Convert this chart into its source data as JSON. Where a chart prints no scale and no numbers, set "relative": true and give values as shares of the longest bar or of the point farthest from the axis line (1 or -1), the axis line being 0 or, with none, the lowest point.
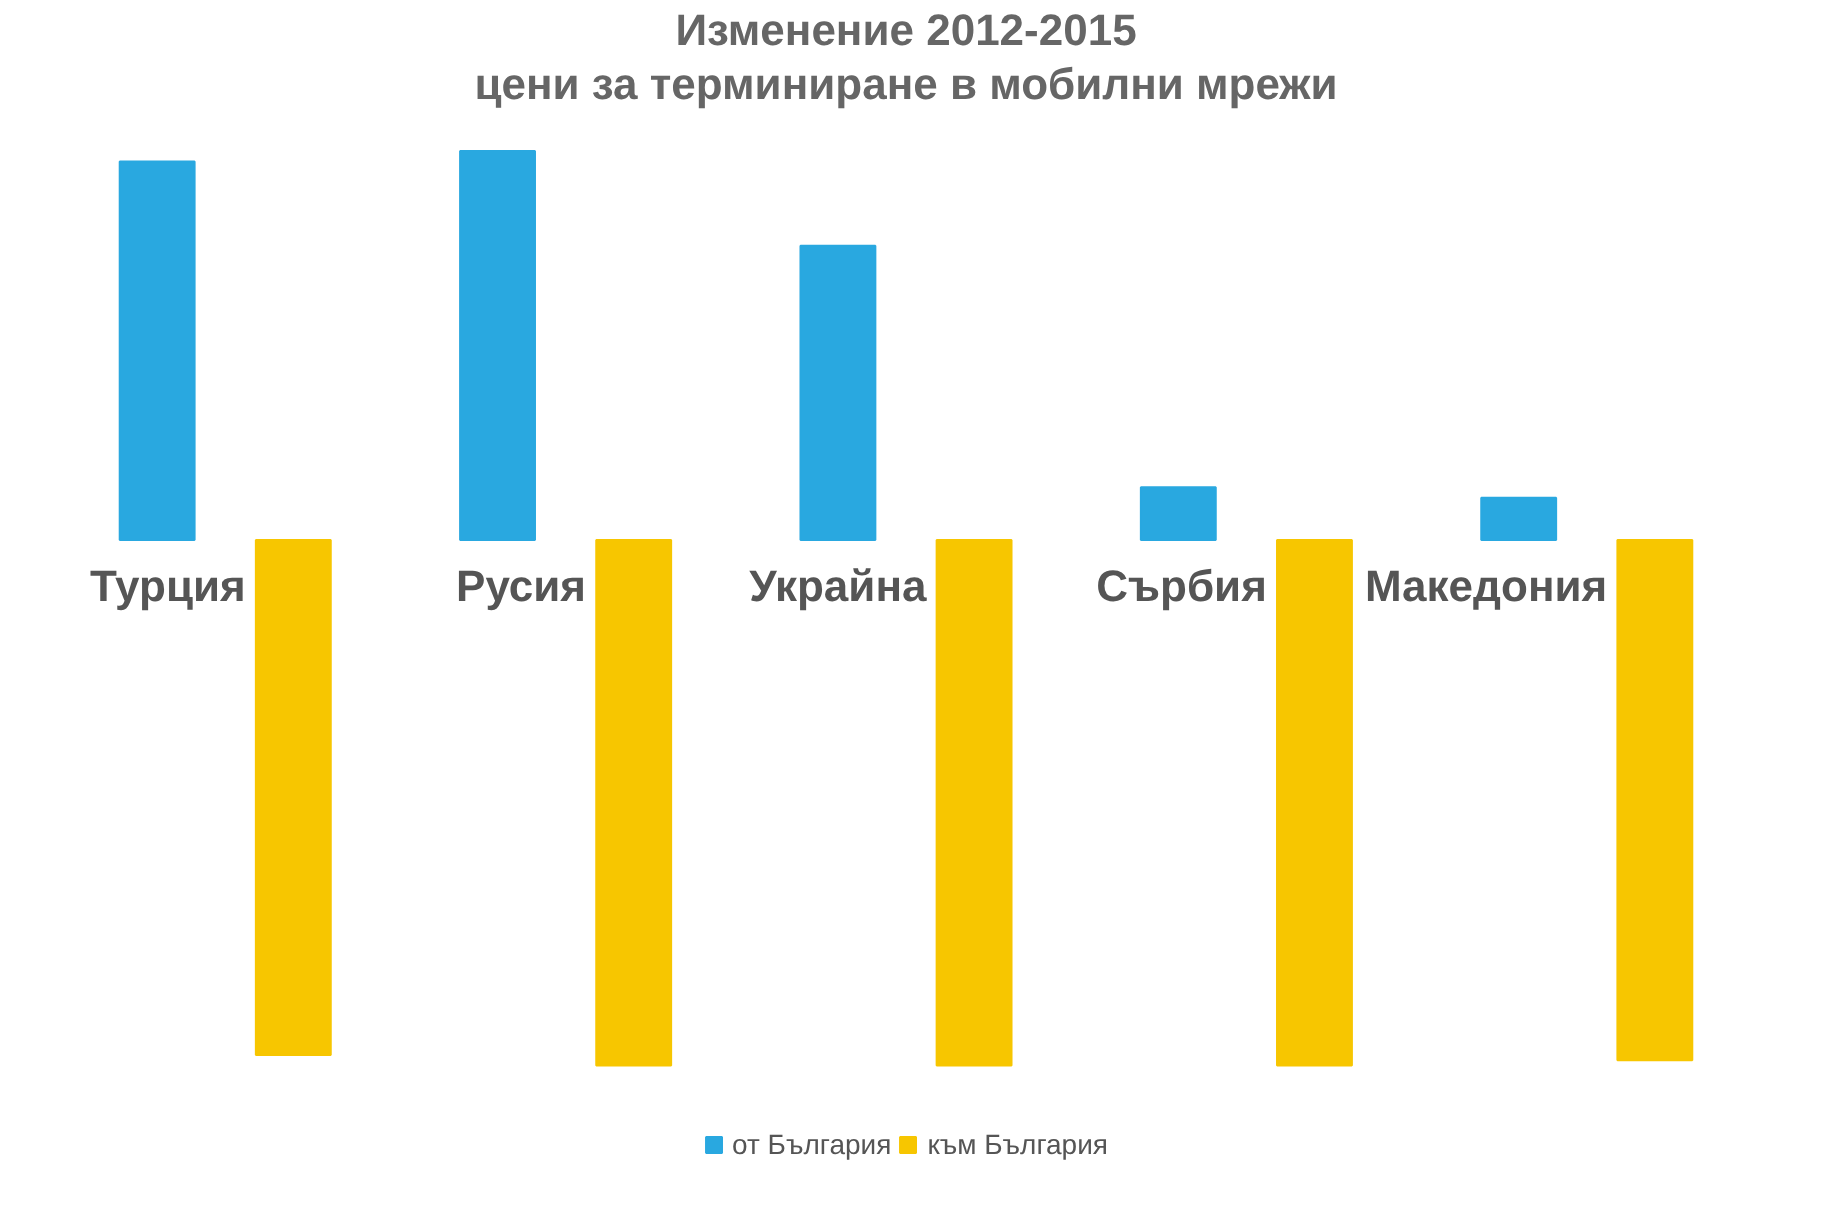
{
  "chart_data": {
    "type": "bar",
    "title": "Изменение 2012-2015",
    "subtitle": "цени за терминиране в мобилни мрежи",
    "categories": [
      "Турция",
      "Русия",
      "Украйна",
      "Сърбия",
      "Македония"
    ],
    "relative": true,
    "series": [
      {
        "name": "от България",
        "color": "#29a8e0",
        "values": [
          0.72,
          0.74,
          0.56,
          0.1,
          0.08
        ]
      },
      {
        "name": "към България",
        "color": "#f7c600",
        "values": [
          -0.98,
          -1,
          -1,
          -1,
          -0.99
        ]
      }
    ],
    "legend": "bottom",
    "grid": false
  }
}
